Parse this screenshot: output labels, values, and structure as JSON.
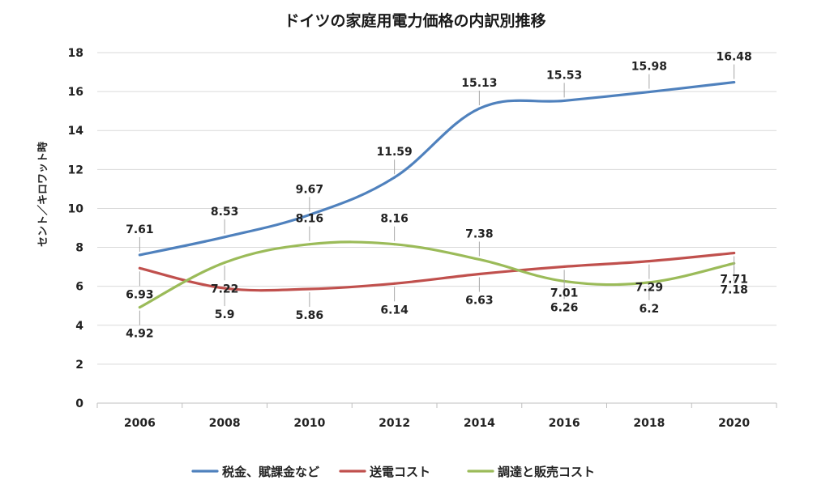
{
  "chart_data": {
    "type": "line",
    "title": "ドイツの家庭用電力価格の内訳別推移",
    "ylabel": "セント／キロワット時",
    "xlabel": "",
    "ylim": [
      0,
      18
    ],
    "yticks": [
      0,
      2,
      4,
      6,
      8,
      10,
      12,
      14,
      16,
      18
    ],
    "grid": true,
    "legend_position": "bottom",
    "categories": [
      "2006",
      "2008",
      "2010",
      "2012",
      "2014",
      "2016",
      "2018",
      "2020"
    ],
    "series": [
      {
        "name": "税金、賦課金など",
        "color": "#4F81BD",
        "values": [
          7.61,
          8.53,
          9.67,
          11.59,
          15.13,
          15.53,
          15.98,
          16.48
        ],
        "labels": [
          "7.61",
          "8.53",
          "9.67",
          "11.59",
          "15.13",
          "15.53",
          "15.98",
          "16.48"
        ]
      },
      {
        "name": "送電コスト",
        "color": "#C0504D",
        "values": [
          6.93,
          5.9,
          5.86,
          6.14,
          6.63,
          7.01,
          7.29,
          7.71
        ],
        "labels": [
          "6.93",
          "5.9",
          "5.86",
          "6.14",
          "6.63",
          "7.01",
          "7.29",
          "7.71"
        ]
      },
      {
        "name": "調達と販売コスト",
        "color": "#9BBB59",
        "values": [
          4.92,
          7.22,
          8.16,
          8.16,
          7.38,
          6.26,
          6.2,
          7.18
        ],
        "labels": [
          "4.92",
          "7.22",
          "8.16",
          "8.16",
          "7.38",
          "6.26",
          "6.2",
          "7.18"
        ]
      }
    ]
  }
}
